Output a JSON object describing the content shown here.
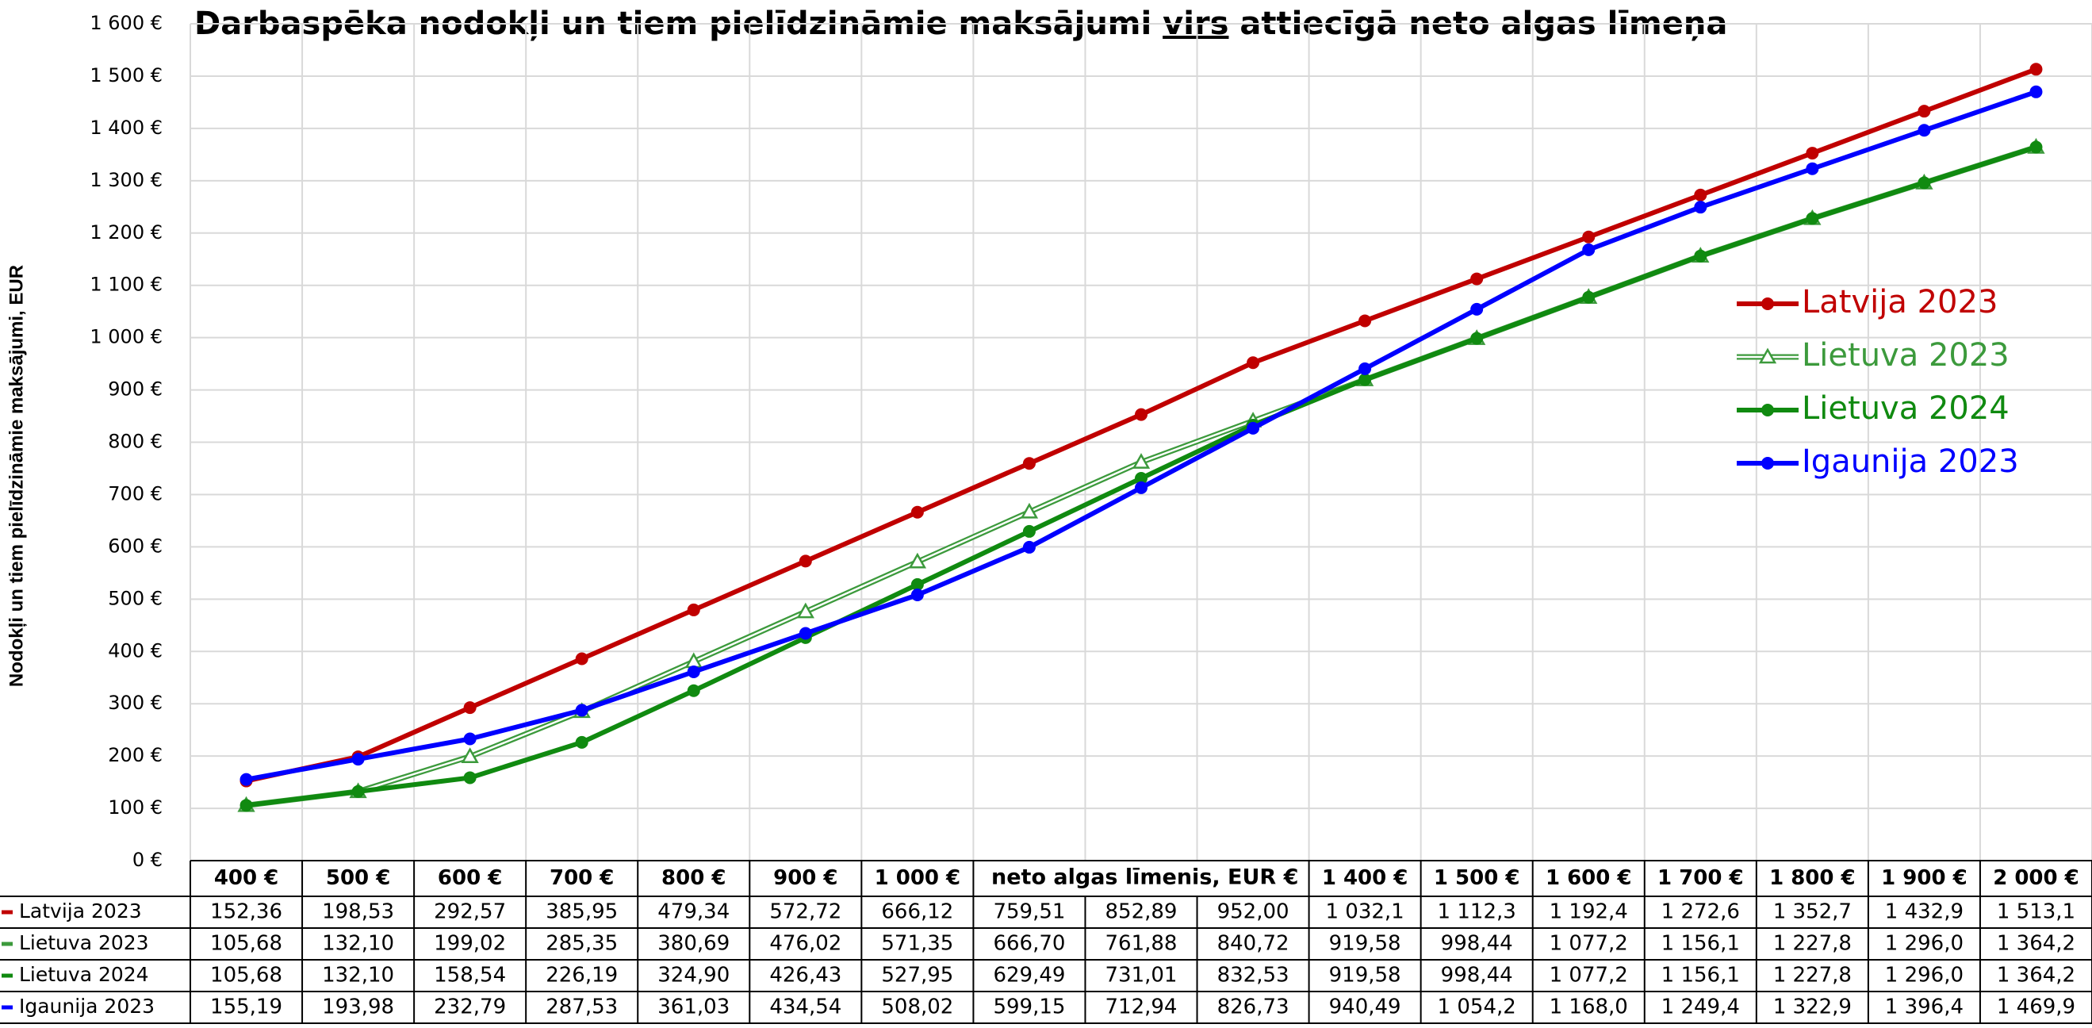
{
  "chart_data": {
    "type": "line",
    "title": [
      "Darbaspēka  nodokļi un tiem pielīdzināmie  maksājumi  ",
      "virs",
      "  attiecīgā  neto algas līmeņa"
    ],
    "y_label": "Nodokļi un tiem pielīdzināmie  maksājumi, EUR",
    "x_label": "neto algas līmenis, EUR €",
    "categories": [
      "400 €",
      "500 €",
      "600 €",
      "700 €",
      "800 €",
      "900 €",
      "1 000 €",
      null,
      null,
      null,
      "1 400 €",
      "1 500 €",
      "1 600 €",
      "1 700 €",
      "1 800 €",
      "1 900 €",
      "2 000 €"
    ],
    "ylim": [
      0,
      1600
    ],
    "yticks": [
      {
        "value": 0,
        "label": "0 €"
      },
      {
        "value": 100,
        "label": "100 €"
      },
      {
        "value": 200,
        "label": "200 €"
      },
      {
        "value": 300,
        "label": "300 €"
      },
      {
        "value": 400,
        "label": "400 €"
      },
      {
        "value": 500,
        "label": "500 €"
      },
      {
        "value": 600,
        "label": "600 €"
      },
      {
        "value": 700,
        "label": "700 €"
      },
      {
        "value": 800,
        "label": "800 €"
      },
      {
        "value": 900,
        "label": "900 €"
      },
      {
        "value": 1000,
        "label": "1 000 €"
      },
      {
        "value": 1100,
        "label": "1 100 €"
      },
      {
        "value": 1200,
        "label": "1 200 €"
      },
      {
        "value": 1300,
        "label": "1 300 €"
      },
      {
        "value": 1400,
        "label": "1 400 €"
      },
      {
        "value": 1500,
        "label": "1 500 €"
      },
      {
        "value": 1600,
        "label": "1 600 €"
      }
    ],
    "grid": true,
    "legend": "right",
    "series": [
      {
        "name": "Latvija 2023",
        "color": "#c00000",
        "marker": "circle",
        "values": [
          152.36,
          198.53,
          292.57,
          385.95,
          479.34,
          572.72,
          666.12,
          759.51,
          852.89,
          952.0,
          1032.1,
          1112.3,
          1192.4,
          1272.6,
          1352.7,
          1432.9,
          1513.1
        ],
        "value_labels": [
          "152,36",
          "198,53",
          "292,57",
          "385,95",
          "479,34",
          "572,72",
          "666,12",
          "759,51",
          "852,89",
          "952,00",
          "1 032,1",
          "1 112,3",
          "1 192,4",
          "1 272,6",
          "1 352,7",
          "1 432,9",
          "1 513,1"
        ]
      },
      {
        "name": "Lietuva 2023",
        "color": "#3c9a3c",
        "marker": "triangle-open",
        "values": [
          105.68,
          132.1,
          199.02,
          285.35,
          380.69,
          476.02,
          571.35,
          666.7,
          761.88,
          840.72,
          919.58,
          998.44,
          1077.2,
          1156.1,
          1227.8,
          1296.0,
          1364.2
        ],
        "value_labels": [
          "105,68",
          "132,10",
          "199,02",
          "285,35",
          "380,69",
          "476,02",
          "571,35",
          "666,70",
          "761,88",
          "840,72",
          "919,58",
          "998,44",
          "1 077,2",
          "1 156,1",
          "1 227,8",
          "1 296,0",
          "1 364,2"
        ]
      },
      {
        "name": "Lietuva 2024",
        "color": "#108a10",
        "marker": "circle",
        "values": [
          105.68,
          132.1,
          158.54,
          226.19,
          324.9,
          426.43,
          527.95,
          629.49,
          731.01,
          832.53,
          919.58,
          998.44,
          1077.2,
          1156.1,
          1227.8,
          1296.0,
          1364.2
        ],
        "value_labels": [
          "105,68",
          "132,10",
          "158,54",
          "226,19",
          "324,90",
          "426,43",
          "527,95",
          "629,49",
          "731,01",
          "832,53",
          "919,58",
          "998,44",
          "1 077,2",
          "1 156,1",
          "1 227,8",
          "1 296,0",
          "1 364,2"
        ]
      },
      {
        "name": "Igaunija 2023",
        "color": "#0000ff",
        "marker": "circle",
        "values": [
          155.19,
          193.98,
          232.79,
          287.53,
          361.03,
          434.54,
          508.02,
          599.15,
          712.94,
          826.73,
          940.49,
          1054.2,
          1168.0,
          1249.4,
          1322.9,
          1396.4,
          1469.9
        ],
        "value_labels": [
          "155,19",
          "193,98",
          "232,79",
          "287,53",
          "361,03",
          "434,54",
          "508,02",
          "599,15",
          "712,94",
          "826,73",
          "940,49",
          "1 054,2",
          "1 168,0",
          "1 249,4",
          "1 322,9",
          "1 396,4",
          "1 469,9"
        ]
      }
    ]
  }
}
